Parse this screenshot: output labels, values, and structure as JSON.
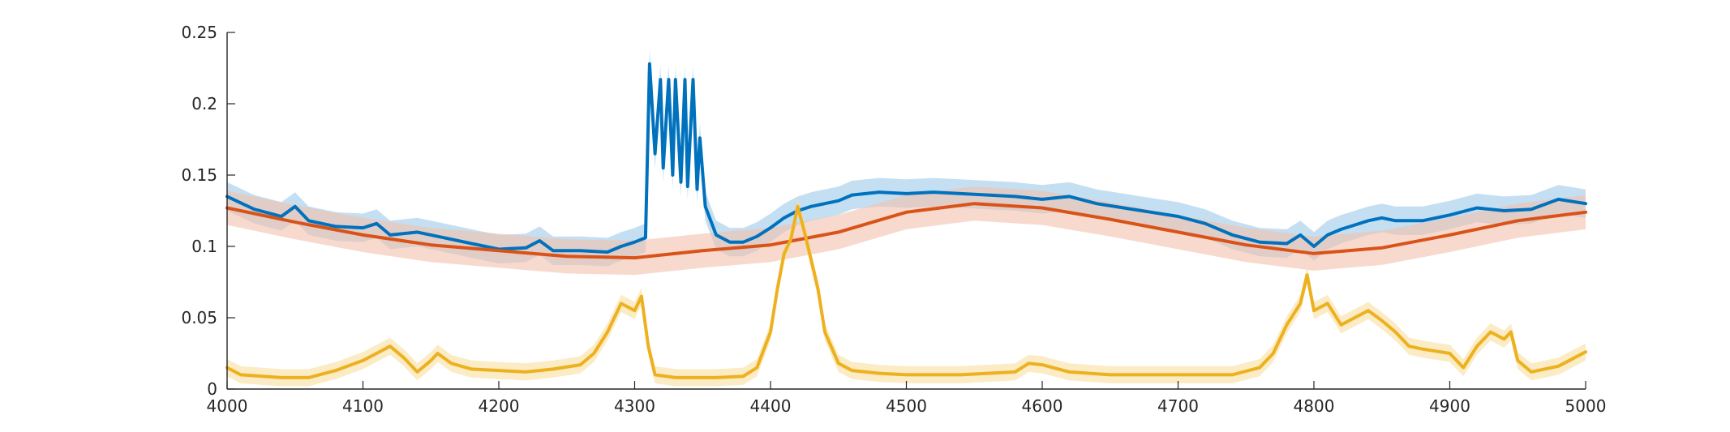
{
  "chart_data": {
    "type": "line",
    "title": "",
    "xlabel": "",
    "ylabel": "",
    "xlim": [
      4000,
      5000
    ],
    "ylim": [
      0,
      0.25
    ],
    "xticks": [
      4000,
      4100,
      4200,
      4300,
      4400,
      4500,
      4600,
      4700,
      4800,
      4900,
      5000
    ],
    "xtick_labels": [
      "4000",
      "4100",
      "4200",
      "4300",
      "4400",
      "4500",
      "4600",
      "4700",
      "4800",
      "4900",
      "5000"
    ],
    "yticks": [
      0,
      0.05,
      0.1,
      0.15,
      0.2,
      0.25
    ],
    "ytick_labels": [
      "0",
      "0.05",
      "0.1",
      "0.15",
      "0.2",
      "0.25"
    ],
    "grid": false,
    "legend": "none",
    "series": [
      {
        "color": "#0072BD",
        "band_color": "#9ECAE9",
        "band_halfwidth": 0.01,
        "x": [
          4000,
          4020,
          4040,
          4050,
          4060,
          4080,
          4100,
          4110,
          4120,
          4140,
          4160,
          4180,
          4190,
          4200,
          4220,
          4230,
          4240,
          4260,
          4280,
          4290,
          4300,
          4308,
          4311,
          4315,
          4319,
          4321,
          4325,
          4328,
          4330,
          4334,
          4337,
          4339,
          4343,
          4346,
          4348,
          4352,
          4360,
          4370,
          4380,
          4390,
          4400,
          4410,
          4420,
          4430,
          4440,
          4450,
          4460,
          4480,
          4500,
          4520,
          4540,
          4560,
          4580,
          4600,
          4620,
          4640,
          4660,
          4680,
          4700,
          4720,
          4740,
          4760,
          4780,
          4790,
          4800,
          4810,
          4820,
          4830,
          4840,
          4850,
          4860,
          4880,
          4900,
          4920,
          4940,
          4960,
          4980,
          5000
        ],
        "values": [
          0.135,
          0.126,
          0.121,
          0.128,
          0.118,
          0.114,
          0.113,
          0.116,
          0.108,
          0.11,
          0.106,
          0.102,
          0.1,
          0.098,
          0.099,
          0.104,
          0.097,
          0.097,
          0.096,
          0.1,
          0.103,
          0.106,
          0.228,
          0.165,
          0.217,
          0.155,
          0.217,
          0.15,
          0.217,
          0.145,
          0.217,
          0.142,
          0.217,
          0.14,
          0.176,
          0.128,
          0.108,
          0.103,
          0.103,
          0.107,
          0.113,
          0.12,
          0.125,
          0.128,
          0.13,
          0.132,
          0.136,
          0.138,
          0.137,
          0.138,
          0.137,
          0.136,
          0.135,
          0.133,
          0.135,
          0.13,
          0.127,
          0.124,
          0.121,
          0.116,
          0.108,
          0.103,
          0.102,
          0.108,
          0.1,
          0.108,
          0.112,
          0.115,
          0.118,
          0.12,
          0.118,
          0.118,
          0.122,
          0.127,
          0.125,
          0.126,
          0.133,
          0.13
        ]
      },
      {
        "color": "#D95319",
        "band_color": "#F2C2AC",
        "band_halfwidth": 0.012,
        "x": [
          4000,
          4050,
          4100,
          4150,
          4200,
          4250,
          4300,
          4350,
          4400,
          4450,
          4500,
          4550,
          4600,
          4650,
          4700,
          4750,
          4800,
          4850,
          4900,
          4950,
          5000
        ],
        "values": [
          0.127,
          0.117,
          0.108,
          0.101,
          0.097,
          0.093,
          0.092,
          0.097,
          0.101,
          0.11,
          0.124,
          0.13,
          0.127,
          0.119,
          0.11,
          0.101,
          0.095,
          0.099,
          0.108,
          0.118,
          0.124
        ]
      },
      {
        "color": "#EDB120",
        "band_color": "#F8DFA0",
        "band_halfwidth": 0.006,
        "x": [
          4000,
          4010,
          4040,
          4060,
          4080,
          4100,
          4110,
          4120,
          4130,
          4140,
          4150,
          4155,
          4165,
          4180,
          4200,
          4220,
          4240,
          4260,
          4270,
          4280,
          4290,
          4300,
          4305,
          4310,
          4315,
          4330,
          4360,
          4380,
          4390,
          4400,
          4405,
          4410,
          4415,
          4420,
          4425,
          4430,
          4435,
          4440,
          4450,
          4460,
          4480,
          4500,
          4540,
          4580,
          4590,
          4600,
          4620,
          4650,
          4700,
          4740,
          4760,
          4770,
          4780,
          4790,
          4795,
          4800,
          4810,
          4820,
          4830,
          4840,
          4850,
          4860,
          4870,
          4880,
          4900,
          4910,
          4920,
          4930,
          4940,
          4945,
          4950,
          4960,
          4980,
          5000
        ],
        "values": [
          0.015,
          0.01,
          0.008,
          0.008,
          0.013,
          0.02,
          0.025,
          0.03,
          0.022,
          0.012,
          0.02,
          0.025,
          0.018,
          0.014,
          0.013,
          0.012,
          0.014,
          0.017,
          0.025,
          0.04,
          0.06,
          0.055,
          0.065,
          0.03,
          0.01,
          0.008,
          0.008,
          0.009,
          0.015,
          0.04,
          0.07,
          0.095,
          0.105,
          0.128,
          0.11,
          0.09,
          0.07,
          0.04,
          0.018,
          0.013,
          0.011,
          0.01,
          0.01,
          0.012,
          0.018,
          0.017,
          0.012,
          0.01,
          0.01,
          0.01,
          0.015,
          0.025,
          0.045,
          0.06,
          0.08,
          0.055,
          0.06,
          0.045,
          0.05,
          0.055,
          0.048,
          0.04,
          0.03,
          0.028,
          0.025,
          0.015,
          0.03,
          0.04,
          0.035,
          0.04,
          0.02,
          0.012,
          0.016,
          0.026
        ]
      }
    ]
  }
}
